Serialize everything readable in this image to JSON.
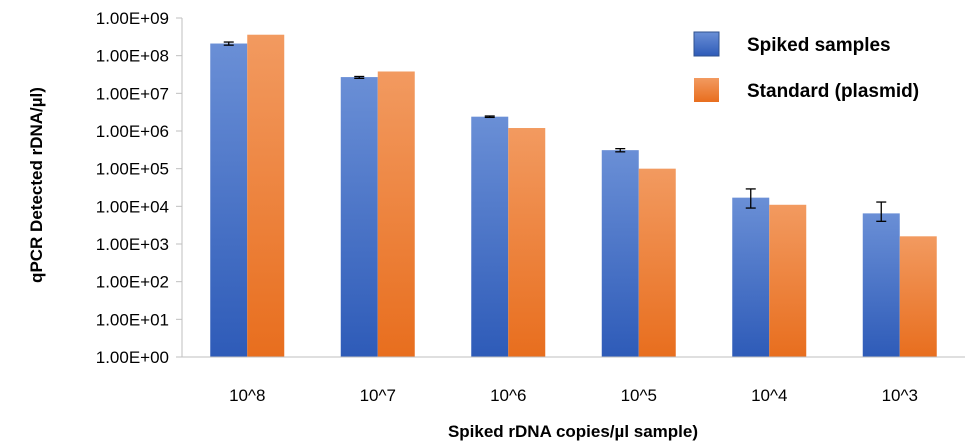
{
  "chart_data": {
    "type": "bar",
    "title": "",
    "xlabel": "Spiked rDNA copies/µl sample)",
    "ylabel": "qPCR Detected rDNA/µl)",
    "yscale": "log",
    "ylim": [
      1,
      1000000000
    ],
    "yticks": [
      "1.00E+00",
      "1.00E+01",
      "1.00E+02",
      "1.00E+03",
      "1.00E+04",
      "1.00E+05",
      "1.00E+06",
      "1.00E+07",
      "1.00E+08",
      "1.00E+09"
    ],
    "categories": [
      "10^8",
      "10^7",
      "10^6",
      "10^5",
      "10^4",
      "10^3"
    ],
    "series": [
      {
        "name": "Spiked samples",
        "values": [
          210000000,
          27000000,
          2400000,
          310000,
          17000,
          6500
        ],
        "error_low": [
          190000000,
          25000000,
          2300000,
          280000,
          9000,
          4000
        ],
        "error_high": [
          230000000,
          28000000,
          2500000,
          340000,
          29000,
          13000
        ],
        "color": "#4472C4"
      },
      {
        "name": "Standard (plasmid)",
        "values": [
          360000000,
          38000000,
          1200000,
          100000,
          11000,
          1600
        ],
        "color": "#ED7D31"
      }
    ],
    "legend_position": "top-right",
    "grid": false
  }
}
